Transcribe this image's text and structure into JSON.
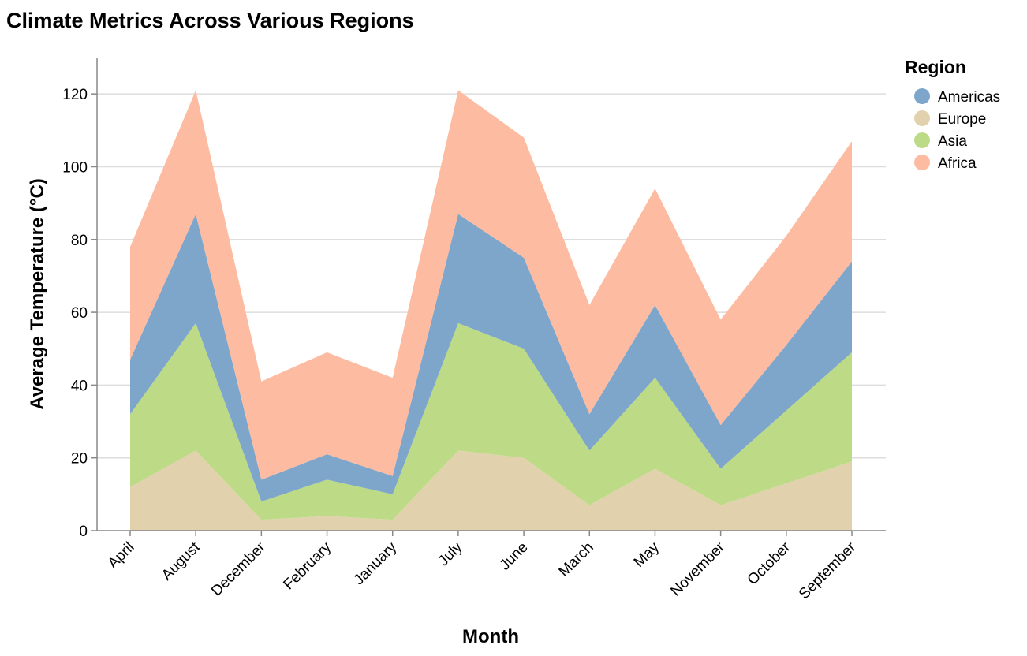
{
  "chart_data": {
    "type": "area",
    "stacked": true,
    "title": "Climate Metrics Across Various Regions",
    "xlabel": "Month",
    "ylabel": "Average Temperature (°C)",
    "ylim": [
      0,
      130
    ],
    "yticks": [
      0,
      20,
      40,
      60,
      80,
      100,
      120
    ],
    "grid": true,
    "legend": {
      "title": "Region",
      "position": "right"
    },
    "categories": [
      "April",
      "August",
      "December",
      "February",
      "January",
      "July",
      "June",
      "March",
      "May",
      "November",
      "October",
      "September"
    ],
    "series": [
      {
        "name": "Europe",
        "color": "#e2d1ad",
        "values": [
          12,
          22,
          3,
          4,
          3,
          22,
          20,
          7,
          17,
          7,
          13,
          19
        ]
      },
      {
        "name": "Asia",
        "color": "#bddb87",
        "values": [
          20,
          35,
          5,
          10,
          7,
          35,
          30,
          15,
          25,
          10,
          20,
          30
        ]
      },
      {
        "name": "Americas",
        "color": "#7ea6ca",
        "values": [
          15,
          30,
          6,
          7,
          5,
          30,
          25,
          10,
          20,
          12,
          18,
          25
        ]
      },
      {
        "name": "Africa",
        "color": "#fdbba1",
        "values": [
          31,
          34,
          27,
          28,
          27,
          34,
          33,
          30,
          32,
          29,
          30,
          33
        ]
      }
    ],
    "legend_order": [
      "Americas",
      "Europe",
      "Asia",
      "Africa"
    ]
  }
}
